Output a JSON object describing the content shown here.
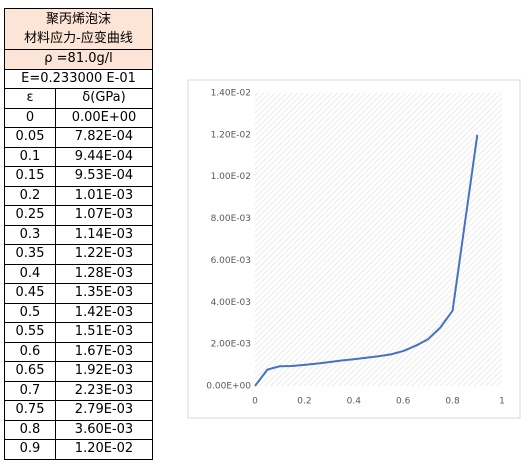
{
  "table": {
    "title_lines": [
      "聚丙烯泡沫",
      "材料应力-应变曲线"
    ],
    "density": "ρ =81.0g/l",
    "modulus": "E=0.233000 E-01",
    "headers": [
      "ε",
      "δ(GPa)"
    ],
    "rows": [
      [
        "0",
        "0.00E+00"
      ],
      [
        "0.05",
        "7.82E-04"
      ],
      [
        "0.1",
        "9.44E-04"
      ],
      [
        "0.15",
        "9.53E-04"
      ],
      [
        "0.2",
        "1.01E-03"
      ],
      [
        "0.25",
        "1.07E-03"
      ],
      [
        "0.3",
        "1.14E-03"
      ],
      [
        "0.35",
        "1.22E-03"
      ],
      [
        "0.4",
        "1.28E-03"
      ],
      [
        "0.45",
        "1.35E-03"
      ],
      [
        "0.5",
        "1.42E-03"
      ],
      [
        "0.55",
        "1.51E-03"
      ],
      [
        "0.6",
        "1.67E-03"
      ],
      [
        "0.65",
        "1.92E-03"
      ],
      [
        "0.7",
        "2.23E-03"
      ],
      [
        "0.75",
        "2.79E-03"
      ],
      [
        "0.8",
        "3.60E-03"
      ],
      [
        "0.9",
        "1.20E-02"
      ]
    ]
  },
  "chart_data": {
    "type": "line",
    "x": [
      0,
      0.05,
      0.1,
      0.15,
      0.2,
      0.25,
      0.3,
      0.35,
      0.4,
      0.45,
      0.5,
      0.55,
      0.6,
      0.65,
      0.7,
      0.75,
      0.8,
      0.9
    ],
    "series": [
      {
        "color": "#4472c4",
        "values": [
          0,
          0.000782,
          0.000944,
          0.000953,
          0.00101,
          0.00107,
          0.00114,
          0.00122,
          0.00128,
          0.00135,
          0.00142,
          0.00151,
          0.00167,
          0.00192,
          0.00223,
          0.00279,
          0.0036,
          0.012
        ]
      }
    ],
    "xlim": [
      0,
      1
    ],
    "xticks": [
      0,
      0.2,
      0.4,
      0.6,
      0.8,
      1
    ],
    "ylim": [
      0,
      0.014
    ],
    "yticks": [
      {
        "value": 0,
        "label": "0.00E+00"
      },
      {
        "value": 0.002,
        "label": "2.00E-03"
      },
      {
        "value": 0.004,
        "label": "4.00E-03"
      },
      {
        "value": 0.006,
        "label": "6.00E-03"
      },
      {
        "value": 0.008,
        "label": "8.00E-03"
      },
      {
        "value": 0.01,
        "label": "1.00E-02"
      },
      {
        "value": 0.012,
        "label": "1.20E-02"
      },
      {
        "value": 0.014,
        "label": "1.40E-02"
      }
    ]
  }
}
